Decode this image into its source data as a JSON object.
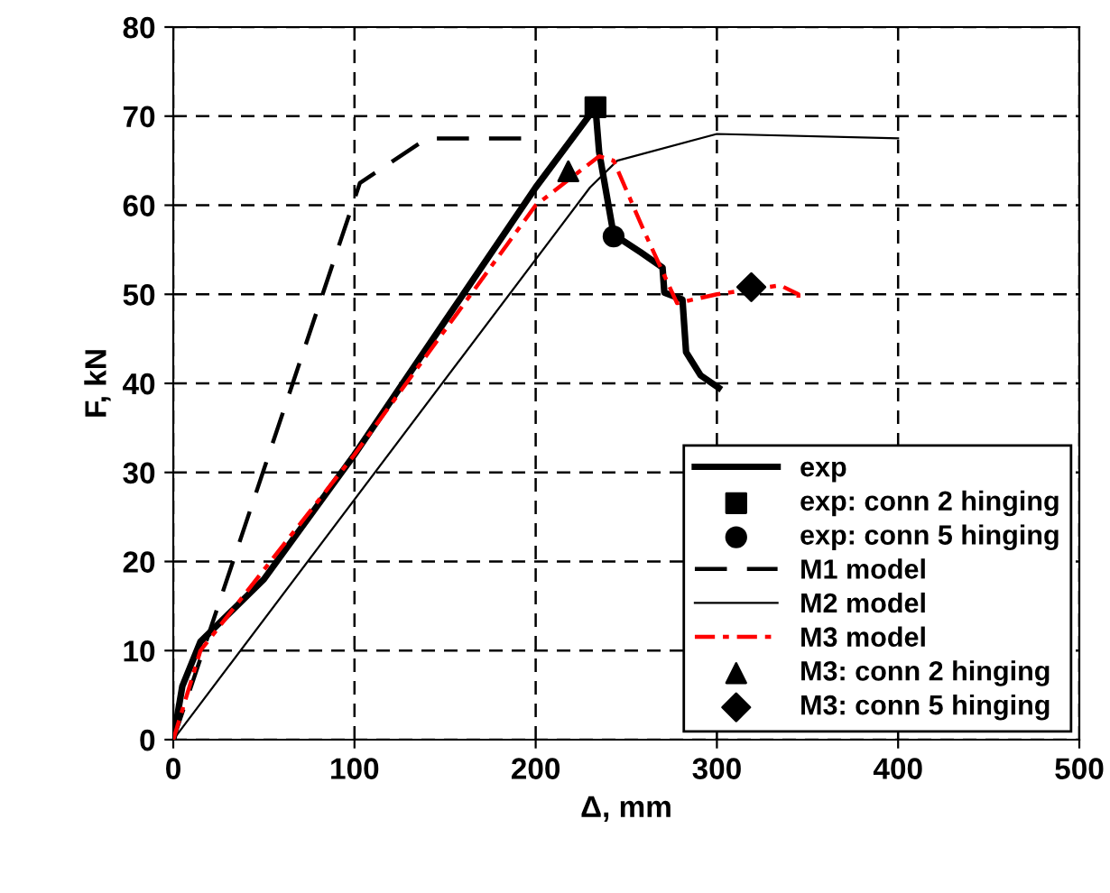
{
  "chart_data": {
    "type": "line",
    "xlabel": "Δ, mm",
    "ylabel": "F, kN",
    "xlim": [
      0,
      500
    ],
    "ylim": [
      0,
      80
    ],
    "xticks": [
      0,
      100,
      200,
      300,
      400,
      500
    ],
    "yticks": [
      0,
      10,
      20,
      30,
      40,
      50,
      60,
      70,
      80
    ],
    "grid": true,
    "legend": "bottom right",
    "series": [
      {
        "name": "exp",
        "color": "#000000",
        "line_style": "solid",
        "x": [
          0,
          5,
          15,
          50,
          100,
          150,
          200,
          233,
          235,
          243,
          258,
          270,
          271,
          281,
          283,
          291,
          301
        ],
        "values": [
          0,
          6,
          11,
          18,
          32,
          47,
          62,
          71,
          66,
          56.7,
          54.7,
          53,
          50.2,
          49.4,
          43.5,
          40.9,
          39.5
        ]
      },
      {
        "name": "exp: conn 2 hinging",
        "type": "scatter",
        "marker": "square",
        "color": "#000000",
        "x": [
          233
        ],
        "values": [
          71
        ]
      },
      {
        "name": "exp: conn 5 hinging",
        "type": "scatter",
        "marker": "circle",
        "color": "#000000",
        "x": [
          243
        ],
        "values": [
          56.5
        ]
      },
      {
        "name": "M1 model",
        "color": "#000000",
        "line_style": "dashed",
        "x": [
          0,
          103,
          140,
          200
        ],
        "values": [
          0,
          62.5,
          67.5,
          67.5
        ]
      },
      {
        "name": "M2 model",
        "color": "#000000",
        "line_style": "solid",
        "x": [
          0,
          230,
          245,
          300,
          400
        ],
        "values": [
          0,
          62,
          65,
          68,
          67.5
        ]
      },
      {
        "name": "M3 model",
        "color": "#ff0000",
        "line_style": "dashdot",
        "x": [
          0,
          15,
          100,
          200,
          235,
          243,
          260,
          278,
          300,
          335,
          345,
          345
        ],
        "values": [
          0,
          10,
          32,
          60,
          65.5,
          65,
          57,
          49,
          50,
          51,
          50,
          49
        ]
      },
      {
        "name": "M3: conn 2 hinging",
        "type": "scatter",
        "marker": "triangle",
        "color": "#000000",
        "x": [
          218
        ],
        "values": [
          63.8
        ]
      },
      {
        "name": "M3: conn 5 hinging",
        "type": "scatter",
        "marker": "diamond",
        "color": "#000000",
        "x": [
          319
        ],
        "values": [
          50.8
        ]
      }
    ]
  }
}
